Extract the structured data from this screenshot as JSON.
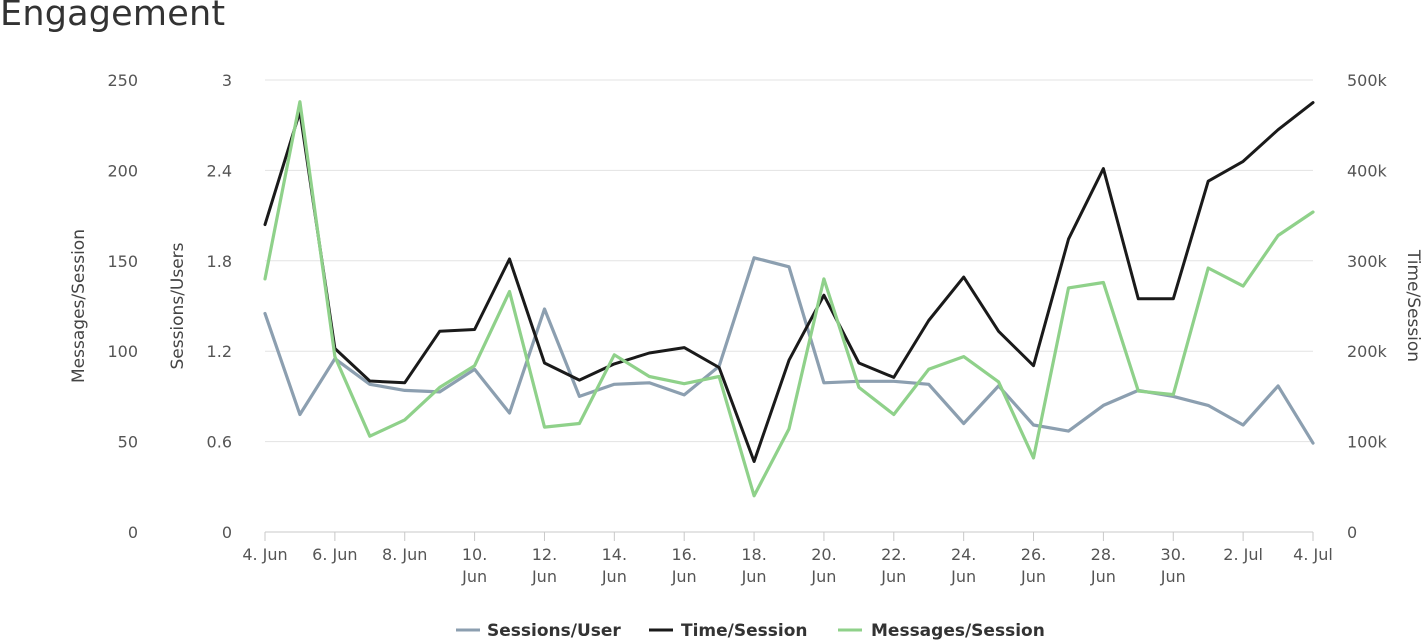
{
  "chart_data": {
    "type": "line",
    "title": "Engagement",
    "x": [
      "4. Jun",
      "5. Jun",
      "6. Jun",
      "7. Jun",
      "8. Jun",
      "9. Jun",
      "10. Jun",
      "11. Jun",
      "12. Jun",
      "13. Jun",
      "14. Jun",
      "15. Jun",
      "16. Jun",
      "17. Jun",
      "18. Jun",
      "19. Jun",
      "20. Jun",
      "21. Jun",
      "22. Jun",
      "23. Jun",
      "24. Jun",
      "25. Jun",
      "26. Jun",
      "27. Jun",
      "28. Jun",
      "29. Jun",
      "30. Jun",
      "1. Jul",
      "2. Jul",
      "3. Jul",
      "4. Jul"
    ],
    "x_tick_labels": [
      {
        "index": 0,
        "lines": [
          "4. Jun"
        ]
      },
      {
        "index": 2,
        "lines": [
          "6. Jun"
        ]
      },
      {
        "index": 4,
        "lines": [
          "8. Jun"
        ]
      },
      {
        "index": 6,
        "lines": [
          "10.",
          "Jun"
        ]
      },
      {
        "index": 8,
        "lines": [
          "12.",
          "Jun"
        ]
      },
      {
        "index": 10,
        "lines": [
          "14.",
          "Jun"
        ]
      },
      {
        "index": 12,
        "lines": [
          "16.",
          "Jun"
        ]
      },
      {
        "index": 14,
        "lines": [
          "18.",
          "Jun"
        ]
      },
      {
        "index": 16,
        "lines": [
          "20.",
          "Jun"
        ]
      },
      {
        "index": 18,
        "lines": [
          "22.",
          "Jun"
        ]
      },
      {
        "index": 20,
        "lines": [
          "24.",
          "Jun"
        ]
      },
      {
        "index": 22,
        "lines": [
          "26.",
          "Jun"
        ]
      },
      {
        "index": 24,
        "lines": [
          "28.",
          "Jun"
        ]
      },
      {
        "index": 26,
        "lines": [
          "30.",
          "Jun"
        ]
      },
      {
        "index": 28,
        "lines": [
          "2. Jul"
        ]
      },
      {
        "index": 30,
        "lines": [
          "4. Jul"
        ]
      }
    ],
    "axes": {
      "messages": {
        "title": "Messages/Session",
        "side": "left-outer",
        "range": [
          0,
          250
        ],
        "ticks": [
          "0",
          "50",
          "100",
          "150",
          "200",
          "250"
        ],
        "tick_values": [
          0,
          50,
          100,
          150,
          200,
          250
        ]
      },
      "sessions": {
        "title": "Sessions/Users",
        "side": "left-inner",
        "range": [
          0,
          3
        ],
        "ticks": [
          "0",
          "0.6",
          "1.2",
          "1.8",
          "2.4",
          "3"
        ],
        "tick_values": [
          0,
          0.6,
          1.2,
          1.8,
          2.4,
          3
        ]
      },
      "time": {
        "title": "Time/Session",
        "side": "right",
        "range": [
          0,
          500000
        ],
        "ticks": [
          "0",
          "100k",
          "200k",
          "300k",
          "400k",
          "500k"
        ],
        "tick_values": [
          0,
          100000,
          200000,
          300000,
          400000,
          500000
        ]
      }
    },
    "grid": true,
    "legend_position": "bottom-center",
    "series": [
      {
        "name": "Sessions/User",
        "axis": "sessions",
        "color": "#8c9fb0",
        "values": [
          1.45,
          0.78,
          1.15,
          0.98,
          0.94,
          0.93,
          1.08,
          0.79,
          1.48,
          0.9,
          0.98,
          0.99,
          0.91,
          1.1,
          1.82,
          1.76,
          0.99,
          1.0,
          1.0,
          0.98,
          0.72,
          0.97,
          0.71,
          0.67,
          0.84,
          0.94,
          0.9,
          0.84,
          0.71,
          0.97,
          0.59
        ]
      },
      {
        "name": "Time/Session",
        "axis": "time",
        "color": "#1a1a1a",
        "values": [
          340000,
          465000,
          203000,
          167000,
          165000,
          222000,
          224000,
          302000,
          187000,
          168000,
          186000,
          198000,
          204000,
          182000,
          78000,
          190000,
          262000,
          187000,
          171000,
          234000,
          282000,
          222000,
          184000,
          324000,
          402000,
          258000,
          258000,
          388000,
          410000,
          445000,
          475000
        ]
      },
      {
        "name": "Messages/Session",
        "axis": "messages",
        "color": "#8fd18a",
        "values": [
          140,
          238,
          97,
          53,
          62,
          80,
          92,
          133,
          58,
          60,
          98,
          86,
          82,
          86,
          20,
          57,
          140,
          80,
          65,
          90,
          97,
          83,
          41,
          135,
          138,
          78,
          76,
          146,
          136,
          164,
          177
        ]
      }
    ]
  }
}
